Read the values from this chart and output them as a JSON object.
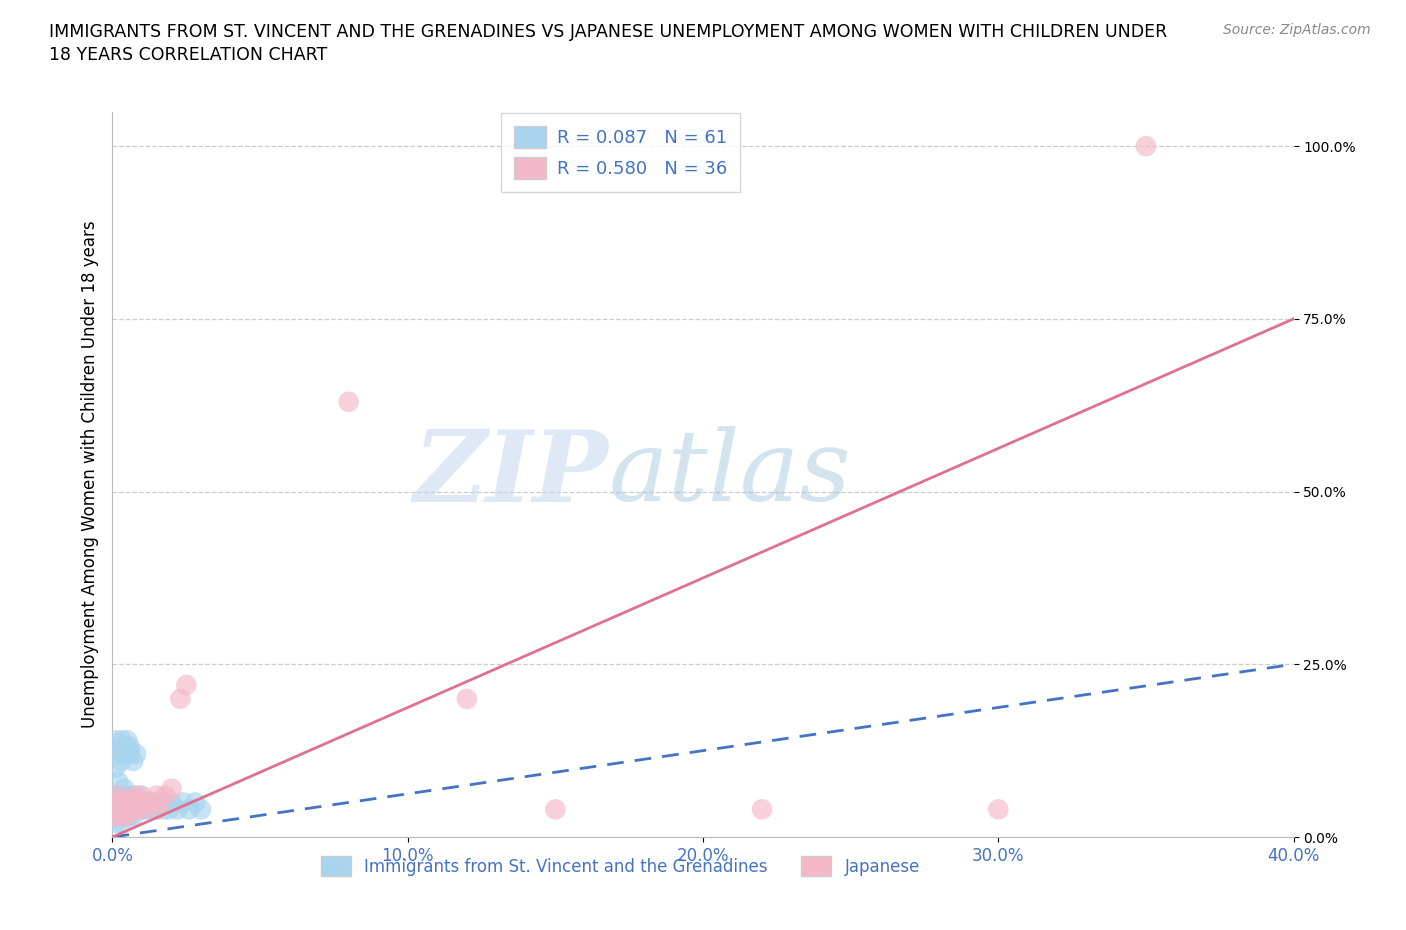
{
  "title_line1": "IMMIGRANTS FROM ST. VINCENT AND THE GRENADINES VS JAPANESE UNEMPLOYMENT AMONG WOMEN WITH CHILDREN UNDER",
  "title_line2": "18 YEARS CORRELATION CHART",
  "source": "Source: ZipAtlas.com",
  "ylabel": "Unemployment Among Women with Children Under 18 years",
  "blue_label": "Immigrants from St. Vincent and the Grenadines",
  "pink_label": "Japanese",
  "blue_R": 0.087,
  "blue_N": 61,
  "pink_R": 0.58,
  "pink_N": 36,
  "blue_color": "#a8d4ee",
  "pink_color": "#f4b8c8",
  "trend_blue_color": "#4472c4",
  "trend_pink_color": "#e07090",
  "xlim": [
    0.0,
    0.4
  ],
  "ylim": [
    0.0,
    1.05
  ],
  "x_ticks": [
    0.0,
    0.1,
    0.2,
    0.3,
    0.4
  ],
  "x_tick_labels": [
    "0.0%",
    "10.0%",
    "20.0%",
    "30.0%",
    "40.0%"
  ],
  "y_ticks": [
    0.0,
    0.25,
    0.5,
    0.75,
    1.0
  ],
  "y_tick_labels": [
    "0.0%",
    "25.0%",
    "50.0%",
    "75.0%",
    "100.0%"
  ],
  "watermark_zip": "ZIP",
  "watermark_atlas": "atlas",
  "blue_x": [
    0.001,
    0.001,
    0.001,
    0.002,
    0.002,
    0.002,
    0.002,
    0.003,
    0.003,
    0.003,
    0.003,
    0.003,
    0.004,
    0.004,
    0.004,
    0.004,
    0.005,
    0.005,
    0.005,
    0.005,
    0.006,
    0.006,
    0.006,
    0.007,
    0.007,
    0.007,
    0.008,
    0.008,
    0.009,
    0.009,
    0.01,
    0.01,
    0.011,
    0.012,
    0.013,
    0.014,
    0.015,
    0.016,
    0.017,
    0.018,
    0.019,
    0.02,
    0.022,
    0.024,
    0.026,
    0.028,
    0.03,
    0.001,
    0.002,
    0.003,
    0.004,
    0.005,
    0.006,
    0.007,
    0.008,
    0.001,
    0.002,
    0.003,
    0.004,
    0.005,
    0.006
  ],
  "blue_y": [
    0.04,
    0.02,
    0.06,
    0.03,
    0.05,
    0.04,
    0.08,
    0.02,
    0.04,
    0.06,
    0.03,
    0.05,
    0.03,
    0.05,
    0.07,
    0.04,
    0.03,
    0.05,
    0.04,
    0.06,
    0.04,
    0.03,
    0.05,
    0.04,
    0.06,
    0.03,
    0.04,
    0.05,
    0.04,
    0.06,
    0.04,
    0.05,
    0.04,
    0.05,
    0.04,
    0.05,
    0.04,
    0.05,
    0.04,
    0.05,
    0.04,
    0.05,
    0.04,
    0.05,
    0.04,
    0.05,
    0.04,
    0.1,
    0.12,
    0.11,
    0.12,
    0.13,
    0.12,
    0.11,
    0.12,
    0.14,
    0.13,
    0.14,
    0.13,
    0.14,
    0.13
  ],
  "pink_x": [
    0.001,
    0.001,
    0.002,
    0.002,
    0.003,
    0.003,
    0.003,
    0.004,
    0.004,
    0.005,
    0.005,
    0.005,
    0.006,
    0.006,
    0.007,
    0.007,
    0.008,
    0.008,
    0.009,
    0.01,
    0.01,
    0.012,
    0.013,
    0.015,
    0.015,
    0.016,
    0.018,
    0.02,
    0.023,
    0.025,
    0.15,
    0.22,
    0.3,
    0.35,
    0.08,
    0.12
  ],
  "pink_y": [
    0.03,
    0.05,
    0.04,
    0.06,
    0.03,
    0.05,
    0.04,
    0.05,
    0.04,
    0.03,
    0.05,
    0.04,
    0.05,
    0.04,
    0.05,
    0.04,
    0.06,
    0.04,
    0.05,
    0.04,
    0.06,
    0.05,
    0.05,
    0.04,
    0.06,
    0.05,
    0.06,
    0.07,
    0.2,
    0.22,
    0.04,
    0.04,
    0.04,
    1.0,
    0.63,
    0.2
  ],
  "trend_blue_x0": 0.0,
  "trend_blue_y0": 0.0,
  "trend_blue_x1": 0.4,
  "trend_blue_y1": 0.25,
  "trend_pink_x0": 0.0,
  "trend_pink_y0": 0.0,
  "trend_pink_x1": 0.4,
  "trend_pink_y1": 0.75
}
